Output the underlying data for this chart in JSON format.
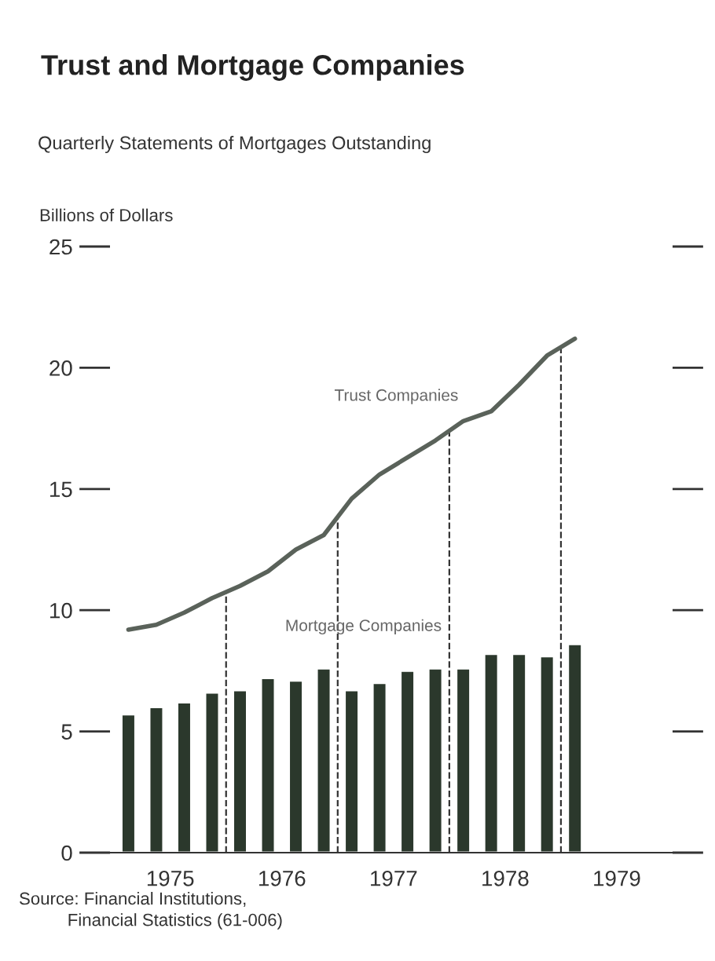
{
  "chart_data": {
    "type": "bar",
    "title": "Trust and Mortgage Companies",
    "subtitle": "Quarterly Statements of Mortgages Outstanding",
    "ylabel": "Billions of Dollars",
    "x": [
      1975.125,
      1975.375,
      1975.625,
      1975.875,
      1976.125,
      1976.375,
      1976.625,
      1976.875,
      1977.125,
      1977.375,
      1977.625,
      1977.875,
      1978.125,
      1978.375,
      1978.625,
      1978.875,
      1979.125
    ],
    "series": [
      {
        "name": "Mortgage Companies",
        "color": "#2b382c",
        "values": [
          5.7,
          6.0,
          6.2,
          6.6,
          6.7,
          7.2,
          7.1,
          7.6,
          6.7,
          7.0,
          7.5,
          7.6,
          7.6,
          8.2,
          8.2,
          8.1,
          8.6
        ]
      },
      {
        "name": "Trust Companies",
        "type": "line",
        "color": "#5a625a",
        "values": [
          9.2,
          9.4,
          9.9,
          10.5,
          11.0,
          11.6,
          12.5,
          13.1,
          14.6,
          15.6,
          16.3,
          17.0,
          17.8,
          18.2,
          19.3,
          20.5,
          21.2
        ]
      }
    ],
    "xlim": [
      1974.96,
      1980.0
    ],
    "xticks": [
      {
        "value": 1975.5,
        "label": "1975"
      },
      {
        "value": 1976.5,
        "label": "1976"
      },
      {
        "value": 1977.5,
        "label": "1977"
      },
      {
        "value": 1978.5,
        "label": "1978"
      },
      {
        "value": 1979.5,
        "label": "1979"
      }
    ],
    "ylim": [
      0,
      25
    ],
    "yticks": [
      0,
      5,
      10,
      15,
      20,
      25
    ],
    "ref_lines": [
      {
        "axis": "x",
        "value": 1976,
        "line_style": "dashed",
        "color": "#333333"
      },
      {
        "axis": "x",
        "value": 1977,
        "line_style": "dashed",
        "color": "#333333"
      },
      {
        "axis": "x",
        "value": 1978,
        "line_style": "dashed",
        "color": "#333333"
      },
      {
        "axis": "x",
        "value": 1979,
        "line_style": "dashed",
        "color": "#333333"
      }
    ],
    "annotations": [
      "Source: Financial Institutions,\n          Financial Statistics (61-006)"
    ],
    "grid": false,
    "legend": false
  }
}
